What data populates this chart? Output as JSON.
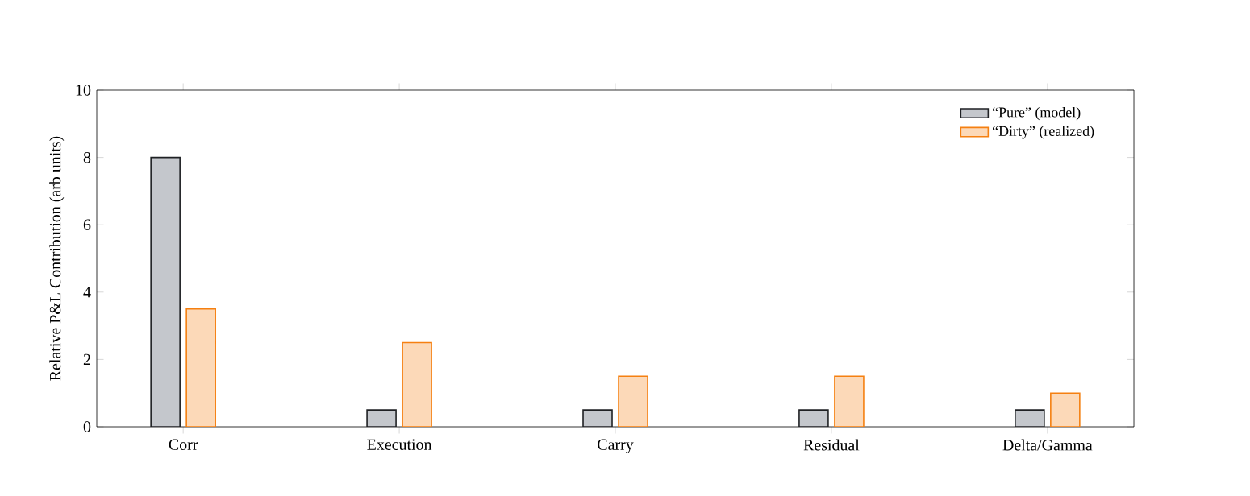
{
  "chart_data": {
    "type": "bar",
    "ylabel": "Relative P&L Contribution (arb units)",
    "categories": [
      "Corr",
      "Execution",
      "Carry",
      "Residual",
      "Delta/Gamma"
    ],
    "series": [
      {
        "name": "“Pure” (model)",
        "color": "#c4c7cc",
        "values": [
          8,
          0.5,
          0.5,
          0.5,
          0.5
        ]
      },
      {
        "name": "“Dirty” (realized)",
        "color": "#fcd9b8",
        "values": [
          3.5,
          2.5,
          1.5,
          1.5,
          1.0
        ]
      }
    ],
    "ylim": [
      0,
      10
    ],
    "yticks": [
      0,
      2,
      4,
      6,
      8,
      10
    ],
    "legend": "top right"
  }
}
